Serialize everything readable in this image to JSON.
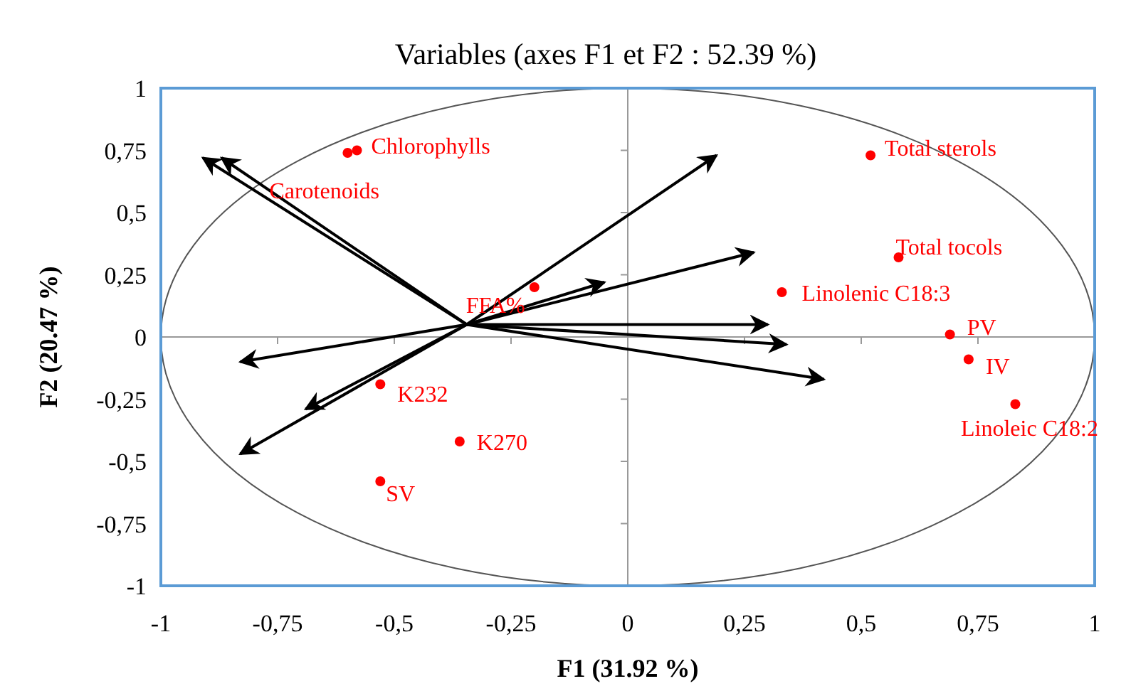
{
  "chart_data": {
    "type": "scatter",
    "title": "Variables (axes F1 et F2 : 52.39 %)",
    "xlabel": "F1 (31.92 %)",
    "ylabel": "F2 (20.47 %)",
    "x": [
      -0.6,
      -0.58,
      0.52,
      0.58,
      0.33,
      0.69,
      0.73,
      0.83,
      -0.2,
      -0.53,
      -0.36,
      -0.53
    ],
    "series": [
      {
        "color": "#ff0000",
        "values": [
          0.74,
          0.75,
          0.73,
          0.32,
          0.18,
          0.01,
          -0.09,
          -0.27,
          0.2,
          -0.19,
          -0.42,
          -0.58
        ]
      }
    ],
    "annotations": [
      {
        "text": "Carotenoids",
        "x": -0.6,
        "y": 0.74
      },
      {
        "text": "Chlorophylls",
        "x": -0.58,
        "y": 0.75
      },
      {
        "text": "Total sterols",
        "x": 0.52,
        "y": 0.73
      },
      {
        "text": "Total tocols",
        "x": 0.58,
        "y": 0.32
      },
      {
        "text": "Linolenic C18:3",
        "x": 0.33,
        "y": 0.18
      },
      {
        "text": "PV",
        "x": 0.69,
        "y": 0.01
      },
      {
        "text": "IV",
        "x": 0.73,
        "y": -0.09
      },
      {
        "text": "Linoleic C18:2",
        "x": 0.83,
        "y": -0.27
      },
      {
        "text": "FFA%",
        "x": -0.2,
        "y": 0.2
      },
      {
        "text": "K232",
        "x": -0.53,
        "y": -0.19
      },
      {
        "text": "K270",
        "x": -0.36,
        "y": -0.42
      },
      {
        "text": "SV",
        "x": -0.53,
        "y": -0.58
      }
    ],
    "marker": "circle",
    "xlim": [
      -1,
      1
    ],
    "ylim": [
      -1,
      1
    ],
    "xticks": [
      -1,
      {
        "value": -0.75,
        "label": "-0,75"
      },
      {
        "value": -0.5,
        "label": "-0,5"
      },
      {
        "value": -0.25,
        "label": "-0,25"
      },
      0,
      {
        "value": 0.25,
        "label": "0,25"
      },
      {
        "value": 0.5,
        "label": "0,5"
      },
      {
        "value": 0.75,
        "label": "0,75"
      },
      1
    ],
    "yticks": [
      -1,
      {
        "value": -0.75,
        "label": "-0,75"
      },
      {
        "value": -0.5,
        "label": "-0,5"
      },
      {
        "value": -0.25,
        "label": "-0,25"
      },
      0,
      {
        "value": 0.25,
        "label": "0,25"
      },
      {
        "value": 0.5,
        "label": "0,5"
      },
      {
        "value": 0.75,
        "label": "0,75"
      },
      1
    ]
  }
}
